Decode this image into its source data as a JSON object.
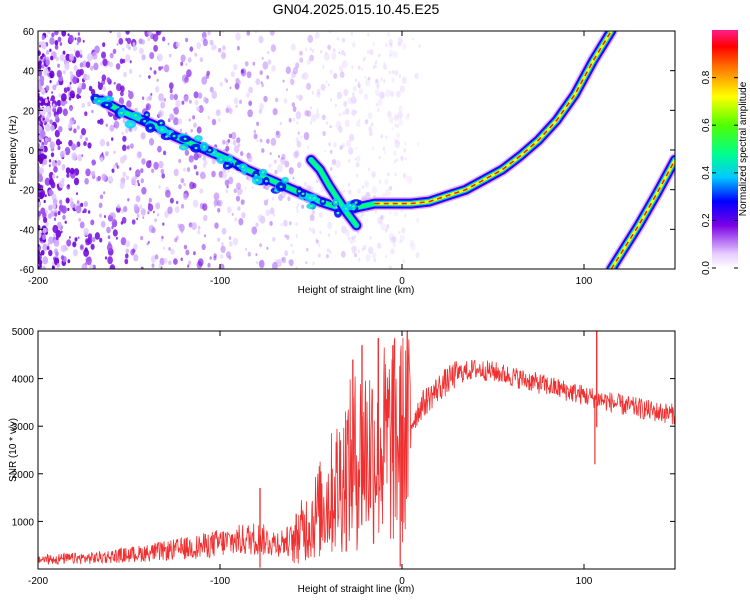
{
  "chart_data": [
    {
      "type": "heatmap",
      "title": "GN04.2025.015.10.45.E25",
      "xlabel": "Height of straight line (km)",
      "ylabel": "Frequency (Hz)",
      "xlim": [
        -200,
        150
      ],
      "ylim": [
        -60,
        60
      ],
      "xticks": [
        -200,
        -100,
        0,
        100
      ],
      "yticks": [
        -60,
        -40,
        -20,
        0,
        20,
        40,
        60
      ],
      "colorbar": {
        "label": "Normalized spectral amplitude",
        "range": [
          0.0,
          1.0
        ],
        "ticks": [
          0.0,
          0.2,
          0.4,
          0.6,
          0.8
        ]
      },
      "main_trace": [
        {
          "x": -165,
          "y": 25
        },
        {
          "x": -155,
          "y": 20
        },
        {
          "x": -145,
          "y": 16
        },
        {
          "x": -135,
          "y": 12
        },
        {
          "x": -125,
          "y": 7
        },
        {
          "x": -115,
          "y": 3
        },
        {
          "x": -105,
          "y": -1
        },
        {
          "x": -95,
          "y": -5
        },
        {
          "x": -85,
          "y": -10
        },
        {
          "x": -75,
          "y": -14
        },
        {
          "x": -65,
          "y": -18
        },
        {
          "x": -55,
          "y": -22
        },
        {
          "x": -45,
          "y": -26
        },
        {
          "x": -35,
          "y": -29
        },
        {
          "x": -25,
          "y": -29
        },
        {
          "x": -15,
          "y": -27
        },
        {
          "x": -5,
          "y": -27
        },
        {
          "x": 5,
          "y": -27
        },
        {
          "x": 15,
          "y": -26
        },
        {
          "x": 25,
          "y": -23
        },
        {
          "x": 35,
          "y": -20
        },
        {
          "x": 45,
          "y": -15
        },
        {
          "x": 55,
          "y": -10
        },
        {
          "x": 65,
          "y": -3
        },
        {
          "x": 75,
          "y": 5
        },
        {
          "x": 85,
          "y": 15
        },
        {
          "x": 95,
          "y": 28
        },
        {
          "x": 105,
          "y": 45
        },
        {
          "x": 115,
          "y": 60
        }
      ],
      "branch_trace": [
        {
          "x": -50,
          "y": -5
        },
        {
          "x": -45,
          "y": -10
        },
        {
          "x": -40,
          "y": -18
        },
        {
          "x": -35,
          "y": -25
        },
        {
          "x": -30,
          "y": -32
        },
        {
          "x": -25,
          "y": -38
        }
      ],
      "secondary_trace": [
        {
          "x": 115,
          "y": -60
        },
        {
          "x": 130,
          "y": -38
        },
        {
          "x": 140,
          "y": -22
        },
        {
          "x": 150,
          "y": -5
        }
      ]
    },
    {
      "type": "line",
      "title": "",
      "xlabel": "Height of straight line (km)",
      "ylabel": "SNR (10 * v/v)",
      "xlim": [
        -200,
        150
      ],
      "ylim": [
        0,
        5000
      ],
      "xticks": [
        -200,
        -100,
        0,
        100
      ],
      "yticks": [
        1000,
        2000,
        3000,
        4000,
        5000
      ],
      "series": [
        {
          "name": "SNR",
          "color": "#f03030",
          "envelope": [
            {
              "x": -200,
              "y": 200
            },
            {
              "x": -170,
              "y": 230
            },
            {
              "x": -150,
              "y": 300
            },
            {
              "x": -130,
              "y": 380
            },
            {
              "x": -110,
              "y": 480
            },
            {
              "x": -100,
              "y": 550
            },
            {
              "x": -90,
              "y": 600
            },
            {
              "x": -80,
              "y": 650
            },
            {
              "x": -70,
              "y": 550
            },
            {
              "x": -60,
              "y": 600
            },
            {
              "x": -50,
              "y": 1000
            },
            {
              "x": -40,
              "y": 1500
            },
            {
              "x": -30,
              "y": 2100
            },
            {
              "x": -20,
              "y": 2500
            },
            {
              "x": -10,
              "y": 2600
            },
            {
              "x": 0,
              "y": 2700
            },
            {
              "x": 10,
              "y": 3400
            },
            {
              "x": 20,
              "y": 3800
            },
            {
              "x": 30,
              "y": 4100
            },
            {
              "x": 40,
              "y": 4200
            },
            {
              "x": 50,
              "y": 4150
            },
            {
              "x": 60,
              "y": 4050
            },
            {
              "x": 70,
              "y": 3950
            },
            {
              "x": 80,
              "y": 3850
            },
            {
              "x": 90,
              "y": 3750
            },
            {
              "x": 100,
              "y": 3650
            },
            {
              "x": 110,
              "y": 3550
            },
            {
              "x": 120,
              "y": 3450
            },
            {
              "x": 130,
              "y": 3380
            },
            {
              "x": 140,
              "y": 3300
            },
            {
              "x": 150,
              "y": 3250
            }
          ],
          "spikes": [
            {
              "x": -78,
              "y": 1700
            },
            {
              "x": -27,
              "y": 4400
            },
            {
              "x": -22,
              "y": 4700
            },
            {
              "x": -13,
              "y": 4850
            },
            {
              "x": -5,
              "y": 4700
            },
            {
              "x": -1,
              "y": 50
            },
            {
              "x": 106,
              "y": 2200
            },
            {
              "x": 107,
              "y": 5000
            }
          ]
        }
      ]
    }
  ]
}
